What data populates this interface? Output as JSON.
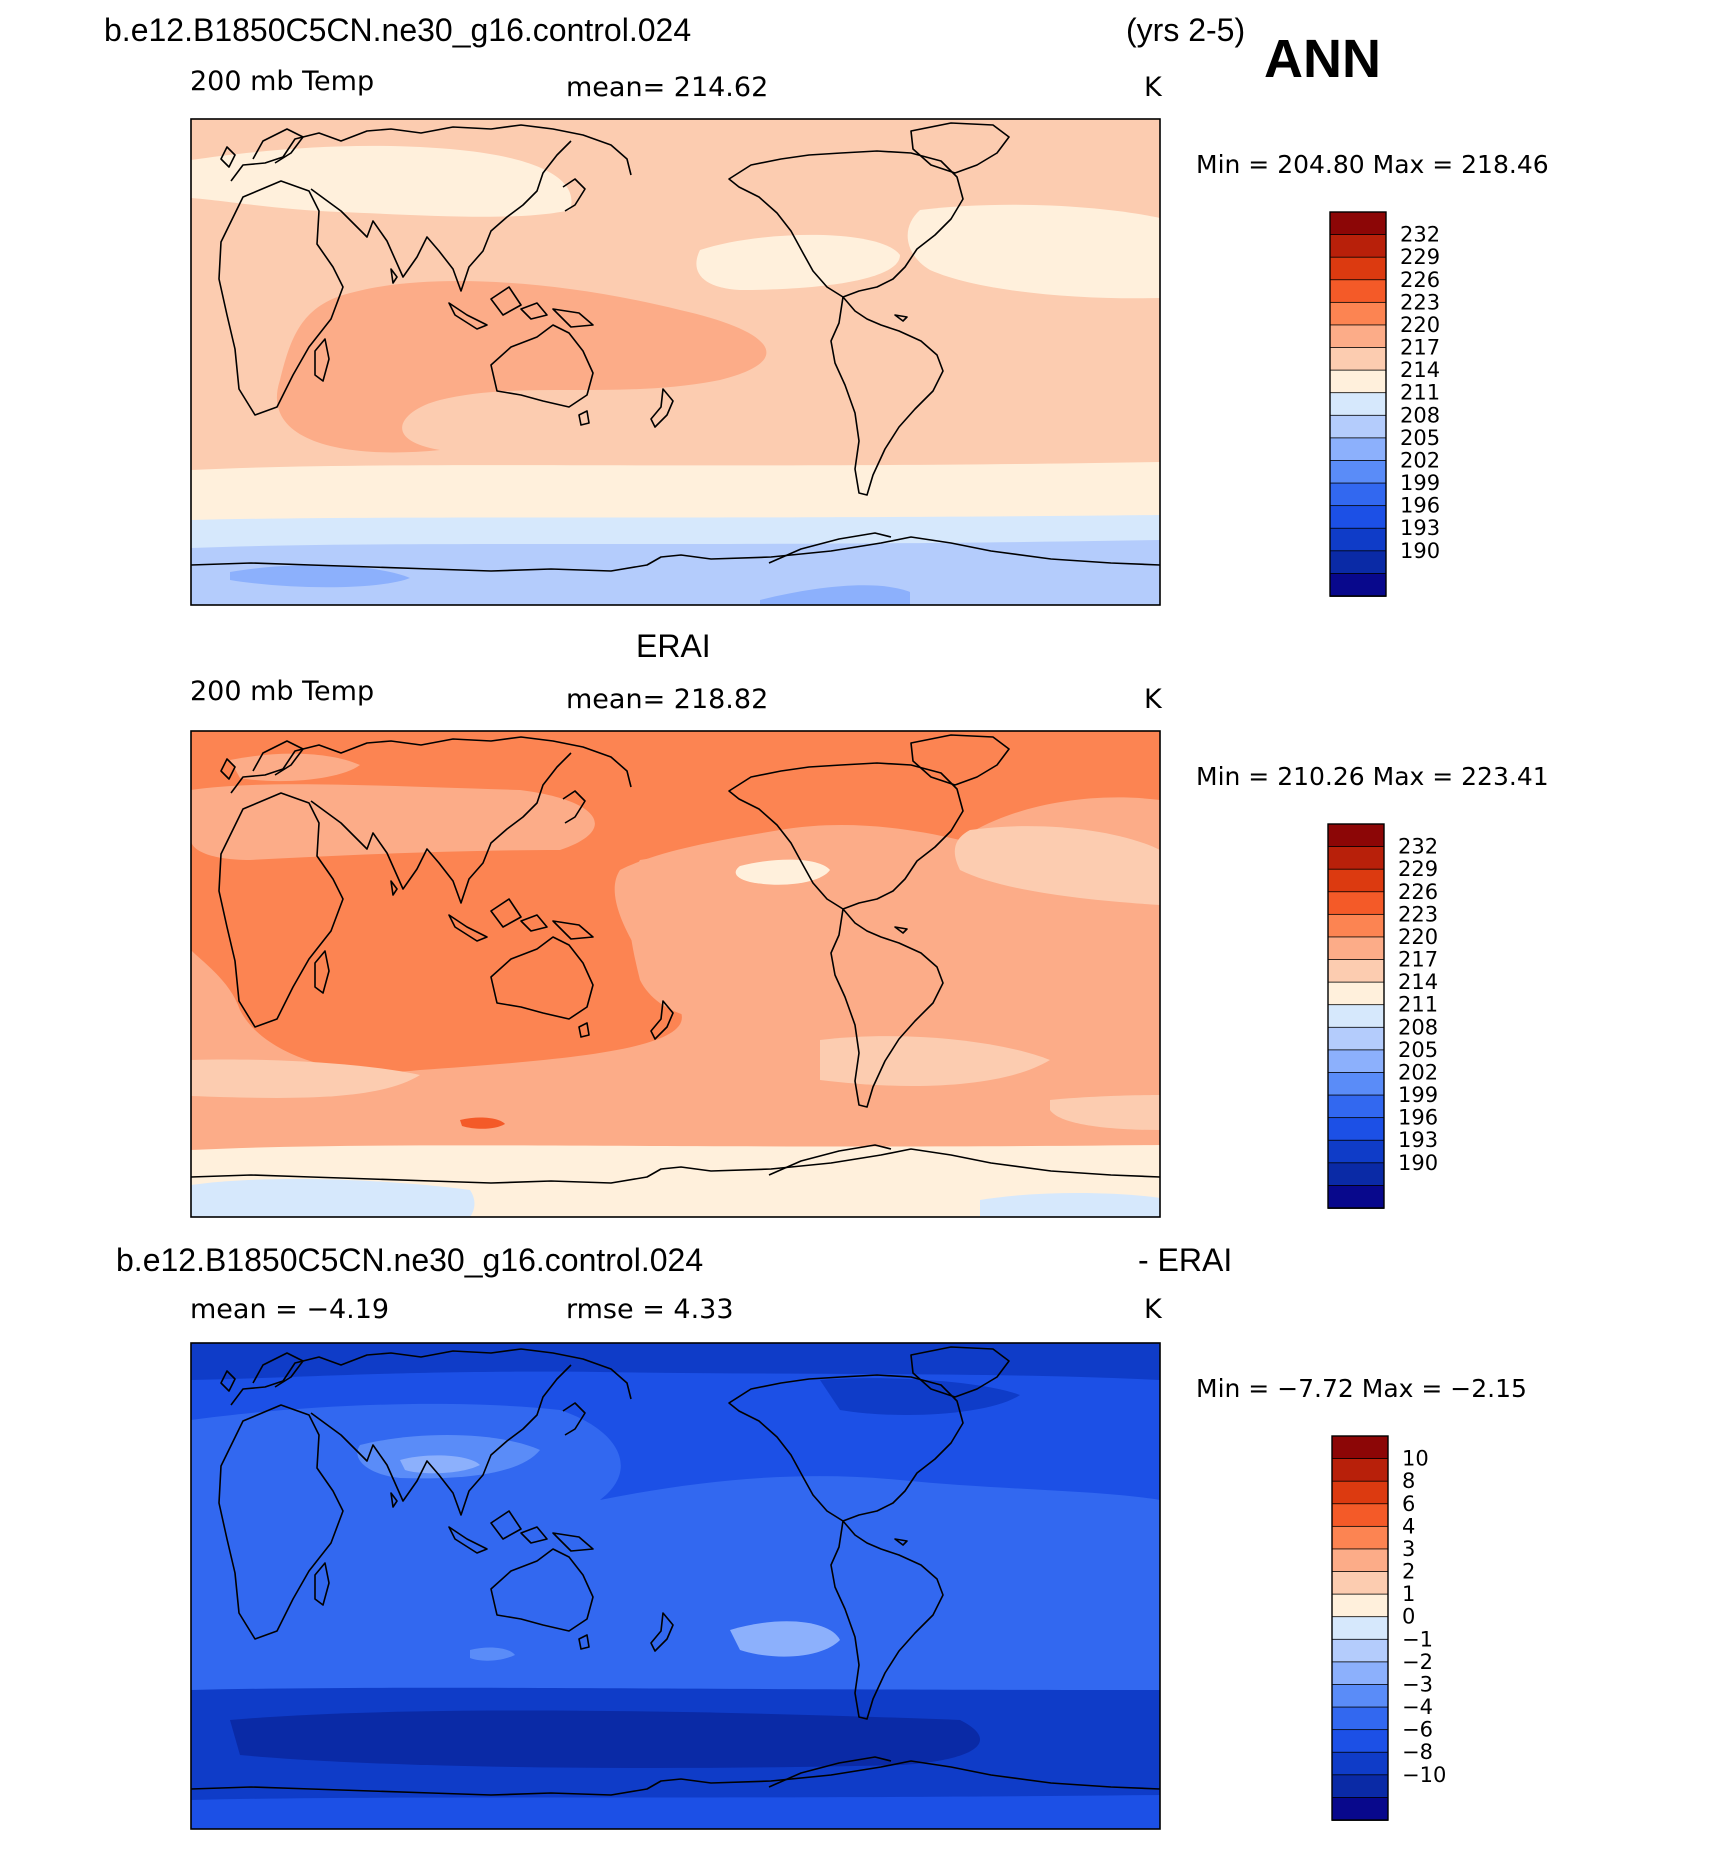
{
  "header": {
    "case_name": "b.e12.B1850C5CN.ne30_g16.control.024",
    "years": "(yrs 2-5)",
    "season": "ANN"
  },
  "colors": {
    "temp_scale": [
      "#08088c",
      "#0a2aa6",
      "#0f3cc8",
      "#1c50e6",
      "#3268f0",
      "#5a8cf8",
      "#8cb0fc",
      "#b4ccfc",
      "#d6e8fc",
      "#fff0dc",
      "#fcccb0",
      "#fcac88",
      "#fc8452",
      "#f45a28",
      "#dc3a10",
      "#b8200a",
      "#8c0606"
    ],
    "coast": "#000000"
  },
  "panels": [
    {
      "title": "",
      "variable": "200 mb Temp",
      "stat": "mean= 214.62",
      "units": "K",
      "minmax": "Min = 204.80 Max = 218.46",
      "levels": [
        "232",
        "229",
        "226",
        "223",
        "220",
        "217",
        "214",
        "211",
        "208",
        "205",
        "202",
        "199",
        "196",
        "193",
        "190"
      ]
    },
    {
      "title": "ERAI",
      "variable": "200 mb Temp",
      "stat": "mean= 218.82",
      "units": "K",
      "minmax": "Min = 210.26 Max = 223.41",
      "levels": [
        "232",
        "229",
        "226",
        "223",
        "220",
        "217",
        "214",
        "211",
        "208",
        "205",
        "202",
        "199",
        "196",
        "193",
        "190"
      ]
    },
    {
      "title_left": "b.e12.B1850C5CN.ne30_g16.control.024",
      "title_right": "- ERAI",
      "variable": "mean =   −4.19",
      "stat": "rmse =    4.33",
      "units": "K",
      "minmax": "Min =  −7.72 Max =  −2.15",
      "levels": [
        "10",
        "8",
        "6",
        "4",
        "3",
        "2",
        "1",
        "0",
        "−1",
        "−2",
        "−3",
        "−4",
        "−6",
        "−8",
        "−10"
      ]
    }
  ]
}
